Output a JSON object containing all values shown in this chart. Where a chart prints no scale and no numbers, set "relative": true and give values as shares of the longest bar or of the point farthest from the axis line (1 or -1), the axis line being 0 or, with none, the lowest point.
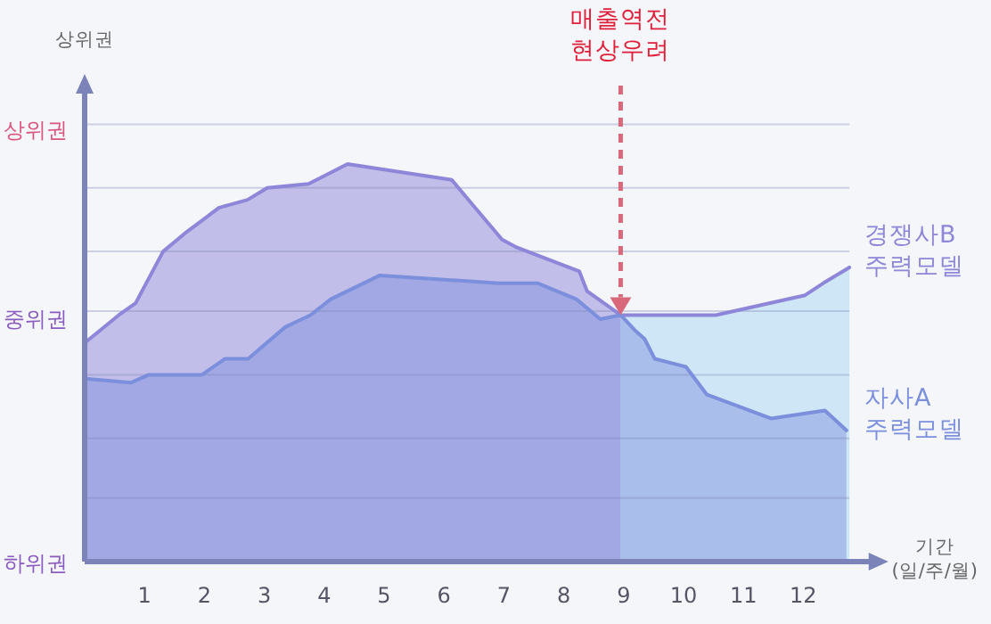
{
  "chart_data": {
    "type": "area",
    "relative": true,
    "xlabel": "기간\n(일/주/월)",
    "xlim": [
      0,
      13.3
    ],
    "xticks": [
      1,
      2,
      3,
      4,
      5,
      6,
      7,
      8,
      9,
      10,
      11,
      12
    ],
    "legend": false,
    "ref_lines": [
      {
        "axis": "y",
        "value": 0.16,
        "color": "#7f86b8"
      },
      {
        "axis": "y",
        "value": 0.31,
        "color": "#7f86b8"
      },
      {
        "axis": "y",
        "value": 0.47,
        "color": "#7f86b8"
      },
      {
        "axis": "y",
        "value": 0.63,
        "color": "#7f86b8"
      },
      {
        "axis": "y",
        "value": 0.78,
        "color": "#7f86b8"
      },
      {
        "axis": "y",
        "value": 0.94,
        "color": "#7f86b8"
      },
      {
        "axis": "y",
        "value": 1.1,
        "color": "#7f86b8"
      }
    ],
    "annotations": [
      "하위권",
      "중위권",
      "상위권",
      "상위권",
      "매출역전\n현상우려"
    ],
    "series": [
      {
        "name": "경쟁사B\n주력모델",
        "color": "#8e86d8",
        "x": [
          0,
          0.57,
          0.85,
          1.31,
          1.71,
          1.98,
          2.24,
          2.72,
          3.05,
          3.74,
          4.39,
          6.13,
          6.52,
          6.97,
          7.22,
          8.26,
          8.39,
          8.95,
          10.54,
          12.03,
          12.33,
          12.77
        ],
        "values": [
          0.55,
          0.62,
          0.65,
          0.78,
          0.83,
          0.86,
          0.89,
          0.91,
          0.94,
          0.95,
          1,
          0.96,
          0.89,
          0.81,
          0.79,
          0.73,
          0.68,
          0.62,
          0.62,
          0.67,
          0.7,
          0.74
        ]
      },
      {
        "name": "자사A\n주력모델",
        "color": "#7b8fdc",
        "x": [
          0,
          0.77,
          1.07,
          1.96,
          2.34,
          2.73,
          3.35,
          3.77,
          4.11,
          4.93,
          6.92,
          7.57,
          8.21,
          8.61,
          8.95,
          9.2,
          9.35,
          9.52,
          10.04,
          10.39,
          11.46,
          12.36,
          12.72
        ],
        "values": [
          0.46,
          0.45,
          0.47,
          0.47,
          0.51,
          0.51,
          0.59,
          0.62,
          0.66,
          0.72,
          0.7,
          0.7,
          0.66,
          0.61,
          0.62,
          0.58,
          0.56,
          0.51,
          0.49,
          0.42,
          0.36,
          0.38,
          0.33
        ]
      }
    ]
  }
}
